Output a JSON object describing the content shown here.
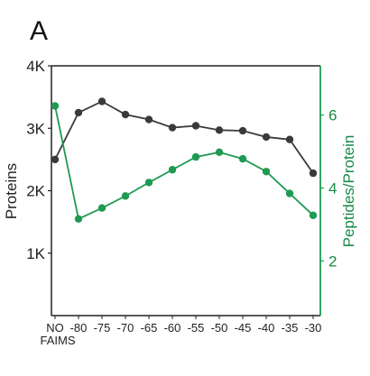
{
  "panel_label": "A",
  "chart_data": {
    "type": "line",
    "categories": [
      "NO FAIMS",
      "-80",
      "-75",
      "-70",
      "-65",
      "-60",
      "-55",
      "-50",
      "-45",
      "-40",
      "-35",
      "-30"
    ],
    "x_ticks": [
      {
        "lines": [
          "NO",
          "FAIMS"
        ]
      },
      {
        "lines": [
          "-80"
        ]
      },
      {
        "lines": [
          "-75"
        ]
      },
      {
        "lines": [
          "-70"
        ]
      },
      {
        "lines": [
          "-65"
        ]
      },
      {
        "lines": [
          "-60"
        ]
      },
      {
        "lines": [
          "-55"
        ]
      },
      {
        "lines": [
          "-50"
        ]
      },
      {
        "lines": [
          "-45"
        ]
      },
      {
        "lines": [
          "-40"
        ]
      },
      {
        "lines": [
          "-35"
        ]
      },
      {
        "lines": [
          "-30"
        ]
      }
    ],
    "ylabel_left": "Proteins",
    "ylim_left": [
      0,
      4000
    ],
    "yticks_left": [
      {
        "value": 1000,
        "label": "1K"
      },
      {
        "value": 2000,
        "label": "2K"
      },
      {
        "value": 3000,
        "label": "3K"
      },
      {
        "value": 4000,
        "label": "4K"
      }
    ],
    "ylabel_right": "Peptides/Protein",
    "ylim_right": [
      0.5,
      7.35
    ],
    "yticks_right": [
      {
        "value": 2,
        "label": "2"
      },
      {
        "value": 4,
        "label": "4"
      },
      {
        "value": 6,
        "label": "6"
      }
    ],
    "grid": false,
    "series": [
      {
        "axis": "left",
        "color": "#3a3a3a",
        "values": [
          2500,
          3250,
          3430,
          3220,
          3140,
          3010,
          3040,
          2970,
          2960,
          2860,
          2820,
          2280
        ]
      },
      {
        "axis": "right",
        "color": "#1f9a52",
        "values": [
          6.25,
          3.15,
          3.45,
          3.78,
          4.15,
          4.5,
          4.85,
          4.98,
          4.8,
          4.45,
          3.85,
          3.25
        ]
      }
    ],
    "colors": {
      "axis_right": "#1f9a52",
      "axis_left": "#222222"
    }
  }
}
